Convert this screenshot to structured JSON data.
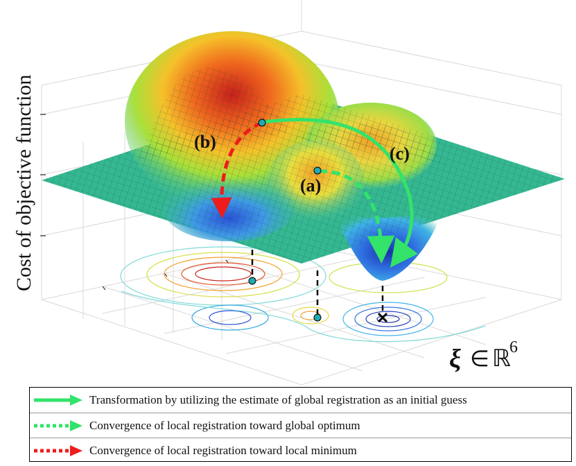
{
  "axis": {
    "z_label": "Cost of objective function",
    "x_symbol": "ξ",
    "x_relation": "∈",
    "x_space": "ℝ",
    "x_power": "6"
  },
  "points": {
    "a": "(a)",
    "b": "(b)",
    "c": "(c)"
  },
  "colors": {
    "green_arrow": "#33e36a",
    "red_arrow": "#ee1c1c",
    "marker": "#22a9b4",
    "plane": "#2fb68f",
    "surface_peak": "#d42a18",
    "surface_valley": "#1f4fd8"
  },
  "legend": {
    "items": [
      {
        "style": "solid-green",
        "label": "Transformation by utilizing the estimate of global registration as an initial guess"
      },
      {
        "style": "dotted-green",
        "label": "Convergence of local registration toward global optimum"
      },
      {
        "style": "dotted-red",
        "label": "Convergence of local registration toward local minimum"
      }
    ]
  },
  "icons": {
    "global_optimum": "cross-icon"
  }
}
